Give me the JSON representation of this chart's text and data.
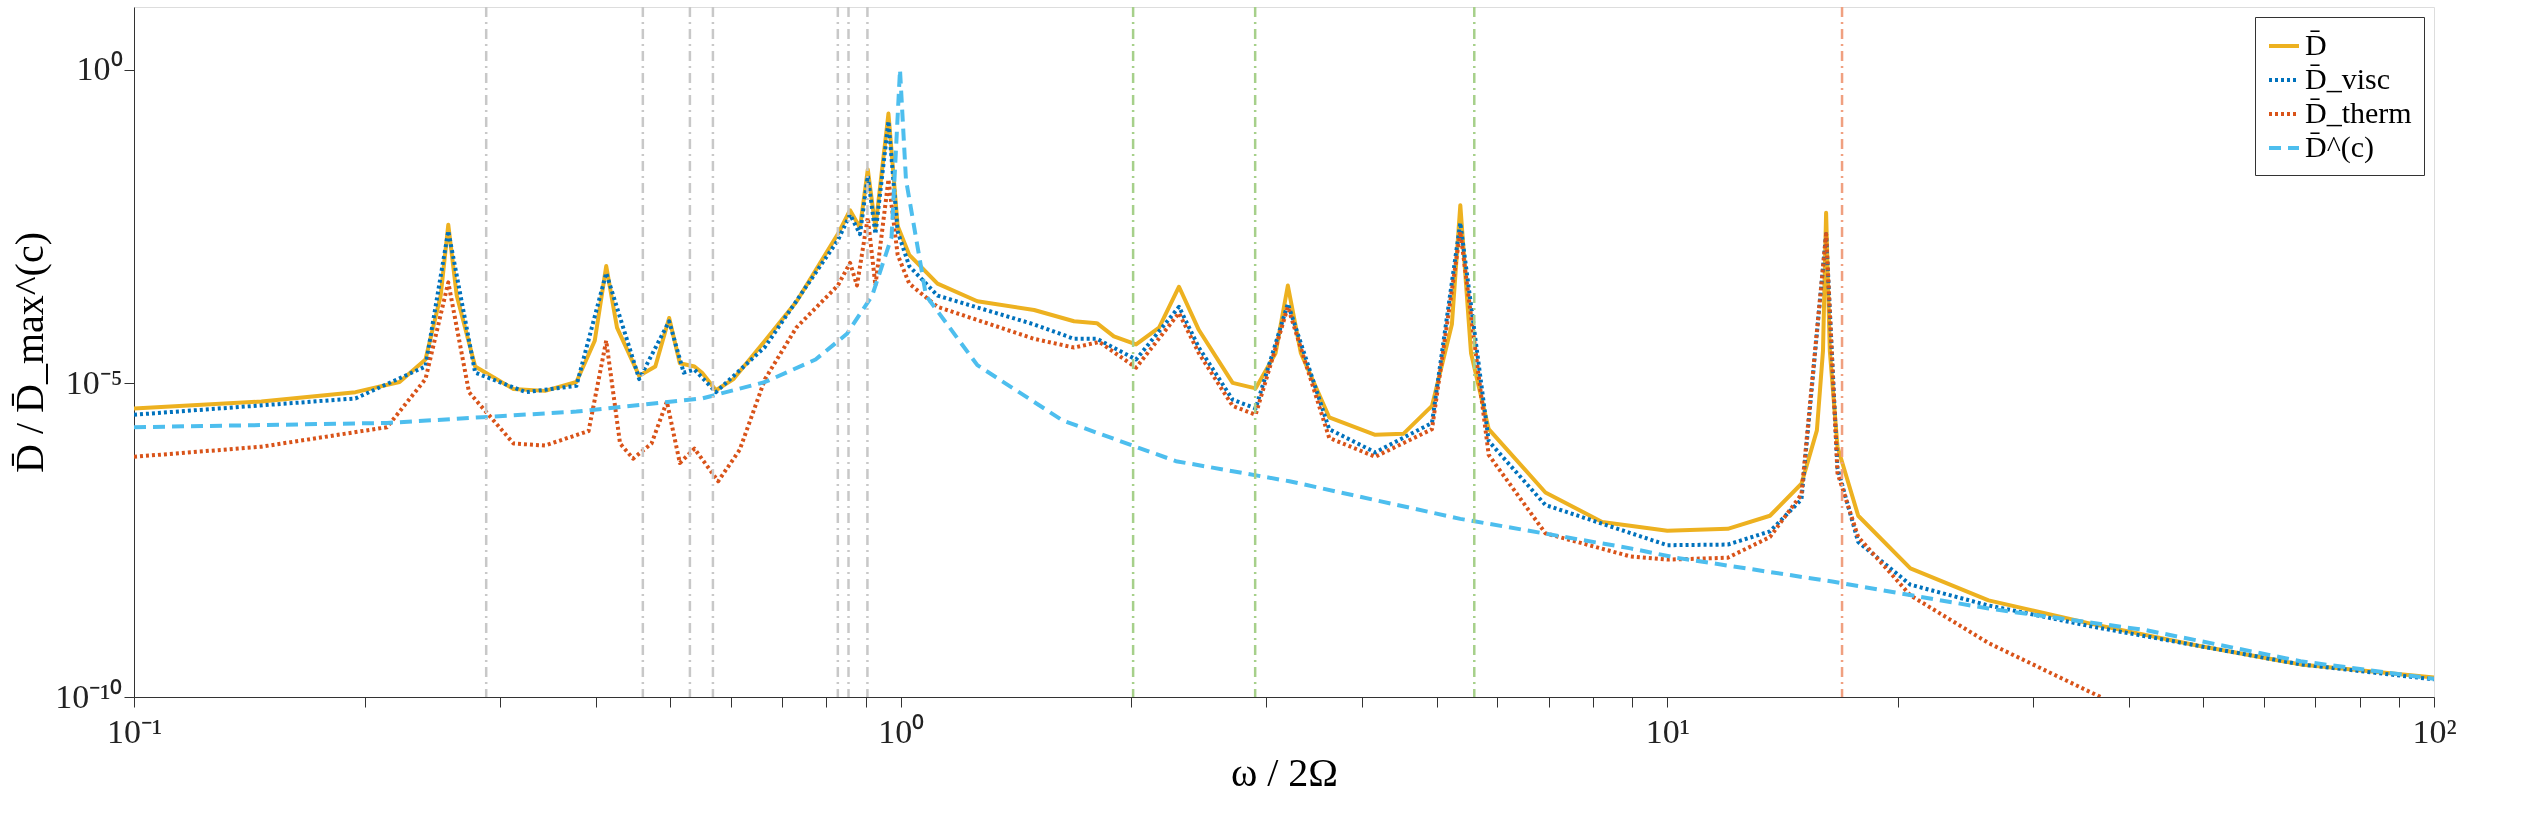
{
  "chart_data": {
    "type": "line",
    "xlabel": "ω / 2Ω",
    "ylabel": "D̄ / D̄_max^(c)",
    "log": "xy",
    "grid": false,
    "legend": "top right",
    "marker": "none",
    "xlim": [
      0.1,
      100
    ],
    "ylim": [
      1e-10,
      10
    ],
    "xticks": [
      {
        "value": 0.1,
        "label": "10⁻¹"
      },
      {
        "value": 0.2,
        "label": null
      },
      {
        "value": 0.3,
        "label": null
      },
      {
        "value": 0.4,
        "label": null
      },
      {
        "value": 0.5,
        "label": null
      },
      {
        "value": 0.6,
        "label": null
      },
      {
        "value": 0.7,
        "label": null
      },
      {
        "value": 0.8,
        "label": null
      },
      {
        "value": 0.9,
        "label": null
      },
      {
        "value": 1,
        "label": "10⁰"
      },
      {
        "value": 2,
        "label": null
      },
      {
        "value": 3,
        "label": null
      },
      {
        "value": 4,
        "label": null
      },
      {
        "value": 5,
        "label": null
      },
      {
        "value": 6,
        "label": null
      },
      {
        "value": 7,
        "label": null
      },
      {
        "value": 8,
        "label": null
      },
      {
        "value": 9,
        "label": null
      },
      {
        "value": 10,
        "label": "10¹"
      },
      {
        "value": 20,
        "label": null
      },
      {
        "value": 30,
        "label": null
      },
      {
        "value": 40,
        "label": null
      },
      {
        "value": 50,
        "label": null
      },
      {
        "value": 60,
        "label": null
      },
      {
        "value": 70,
        "label": null
      },
      {
        "value": 80,
        "label": null
      },
      {
        "value": 90,
        "label": null
      },
      {
        "value": 100,
        "label": "10²"
      }
    ],
    "yticks": [
      {
        "value": 1e-10,
        "label": "10⁻¹⁰"
      },
      {
        "value": 1e-05,
        "label": "10⁻⁵"
      },
      {
        "value": 1,
        "label": "10⁰"
      }
    ],
    "series": [
      {
        "name": "D̄",
        "color": "#edb120",
        "line_style": "solid",
        "x": [
          0.1,
          0.1466,
          0.1945,
          0.222,
          0.24,
          0.2512,
          0.257,
          0.2636,
          0.2786,
          0.3126,
          0.3436,
          0.3776,
          0.399,
          0.413,
          0.4266,
          0.456,
          0.4786,
          0.4989,
          0.5152,
          0.5383,
          0.5508,
          0.5741,
          0.6053,
          0.6653,
          0.7311,
          0.828,
          0.859,
          0.885,
          0.906,
          0.927,
          0.964,
          0.991,
          1.026,
          1.117,
          1.259,
          1.493,
          1.683,
          1.803,
          1.897,
          2.028,
          2.173,
          2.307,
          2.449,
          2.71,
          2.904,
          3.083,
          3.199,
          3.327,
          3.622,
          4.159,
          4.529,
          4.932,
          5.236,
          5.37,
          5.546,
          5.848,
          6.934,
          8.222,
          10,
          11.99,
          13.61,
          14.96,
          15.67,
          15.96,
          16.11,
          16.29,
          16.67,
          17.74,
          20.75,
          26.24,
          35.89,
          49.09,
          66.99,
          100
        ],
        "values": [
          3.98e-06,
          5.13e-06,
          7.24e-06,
          1.05e-05,
          2.4e-05,
          0.000251,
          0.00339,
          0.000251,
          1.86e-05,
          8.13e-06,
          7.59e-06,
          1.05e-05,
          4.79e-05,
          0.000741,
          7.76e-05,
          1.32e-05,
          1.86e-05,
          0.00011,
          2.09e-05,
          1.86e-05,
          1.48e-05,
          7.76e-06,
          1.17e-05,
          4.79e-05,
          0.0002,
          0.0024,
          0.00575,
          0.00302,
          0.0257,
          0.00302,
          0.2,
          0.00324,
          0.00112,
          0.000389,
          0.000204,
          0.000148,
          9.77e-05,
          9.12e-05,
          5.62e-05,
          4.17e-05,
          7.76e-05,
          0.000347,
          7.08e-05,
          1.02e-05,
          8.32e-06,
          3.02e-05,
          0.000363,
          3.02e-05,
          2.88e-06,
          1.51e-06,
          1.58e-06,
          4.37e-06,
          8.71e-05,
          0.00692,
          3.02e-05,
          1.86e-06,
          1.82e-07,
          6.17e-08,
          4.47e-08,
          4.79e-08,
          7.76e-08,
          2.51e-07,
          1.78e-06,
          3.31e-05,
          0.00525,
          3.31e-05,
          9.77e-07,
          7.76e-08,
          1.12e-08,
          3.47e-09,
          1.45e-09,
          6.61e-10,
          3.31e-10,
          2.04e-10
        ]
      },
      {
        "name": "D̄_visc",
        "color": "#0072bd",
        "line_style": "dotted",
        "x": [
          0.1,
          0.1945,
          0.24,
          0.257,
          0.2786,
          0.3243,
          0.3776,
          0.413,
          0.456,
          0.4989,
          0.5212,
          0.5383,
          0.5741,
          0.6653,
          0.828,
          0.859,
          0.885,
          0.906,
          0.927,
          0.964,
          0.991,
          1.026,
          1.117,
          1.493,
          1.683,
          1.803,
          2.028,
          2.307,
          2.449,
          2.71,
          2.904,
          3.199,
          3.622,
          4.159,
          4.932,
          5.37,
          5.848,
          6.934,
          10,
          11.99,
          13.61,
          14.96,
          16.11,
          16.67,
          17.74,
          20.75,
          26.24,
          35.89,
          66.99,
          100
        ],
        "values": [
          3.16e-06,
          5.75e-06,
          1.86e-05,
          0.00269,
          1.48e-05,
          7.24e-06,
          9.12e-06,
          0.000575,
          1.17e-05,
          9.77e-05,
          1.48e-05,
          1.66e-05,
          7.24e-06,
          3.8e-05,
          0.00191,
          0.0049,
          0.0024,
          0.0204,
          0.0024,
          0.151,
          0.00263,
          0.000741,
          0.000251,
          8.71e-05,
          5.13e-05,
          5.13e-05,
          2.4e-05,
          0.000166,
          3.72e-05,
          5.5e-06,
          3.98e-06,
          0.000186,
          1.86e-06,
          7.94e-07,
          2.34e-06,
          0.00363,
          1.2e-06,
          1.15e-07,
          2.63e-08,
          2.69e-08,
          4.37e-08,
          1.41e-07,
          0.0024,
          4.47e-07,
          2.95e-08,
          6.17e-09,
          2.88e-09,
          1.32e-09,
          3.31e-10,
          1.91e-10
        ]
      },
      {
        "name": "D̄_therm",
        "color": "#d95319",
        "line_style": "dotted",
        "x": [
          0.1,
          0.1466,
          0.2138,
          0.24,
          0.257,
          0.2735,
          0.3126,
          0.3436,
          0.3917,
          0.413,
          0.4305,
          0.4477,
          0.4732,
          0.4955,
          0.5152,
          0.5383,
          0.5781,
          0.6166,
          0.6653,
          0.7311,
          0.828,
          0.859,
          0.877,
          0.906,
          0.927,
          0.964,
          0.991,
          1.026,
          1.117,
          1.493,
          1.683,
          1.816,
          2.028,
          2.307,
          2.449,
          2.71,
          2.904,
          3.199,
          3.622,
          4.159,
          4.932,
          5.37,
          5.848,
          6.934,
          8.954,
          10,
          11.99,
          13.61,
          14.96,
          16.11,
          16.67,
          17.74,
          20.75,
          26.24,
          36.73
        ],
        "values": [
          6.76e-07,
          9.77e-07,
          2e-06,
          1.17e-05,
          0.000407,
          7.24e-06,
          1.1e-06,
          1.02e-06,
          1.74e-06,
          4.79e-05,
          1.1e-06,
          6.31e-07,
          1.1e-06,
          5.13e-06,
          5.37e-07,
          9.12e-07,
          2.75e-07,
          8.71e-07,
          1.17e-05,
          7.76e-05,
          0.000363,
          0.000832,
          0.000363,
          0.00437,
          0.000363,
          0.0178,
          0.00112,
          0.000389,
          0.000166,
          5.13e-05,
          3.72e-05,
          4.57e-05,
          1.78e-05,
          0.000132,
          3.02e-05,
          4.37e-06,
          3.16e-06,
          0.000166,
          1.35e-06,
          6.76e-07,
          1.86e-06,
          0.00263,
          7.24e-07,
          4.07e-08,
          1.74e-08,
          1.55e-08,
          1.66e-08,
          3.55e-08,
          1.7e-07,
          0.0024,
          3.72e-07,
          3.55e-08,
          4.17e-09,
          7.24e-10,
          1e-10
        ]
      },
      {
        "name": "D̄^(c)",
        "color": "#4dbeee",
        "line_style": "dashed",
        "x": [
          0.1,
          0.2138,
          0.3776,
          0.5508,
          0.6653,
          0.7745,
          0.851,
          0.918,
          0.973,
          0.998,
          1.016,
          1.079,
          1.259,
          1.626,
          2.286,
          3.214,
          5.37,
          8.954,
          10.28,
          16.41,
          26.24,
          41.98,
          66.99,
          100
        ],
        "values": [
          2e-06,
          2.34e-06,
          3.55e-06,
          5.75e-06,
          1.05e-05,
          2.4e-05,
          6.17e-05,
          0.000251,
          0.00214,
          1,
          0.0178,
          0.000251,
          1.95e-05,
          2.57e-06,
          5.75e-07,
          2.75e-07,
          6.92e-08,
          2.34e-08,
          1.66e-08,
          6.92e-09,
          2.57e-09,
          1.17e-09,
          3.72e-10,
          1.95e-10
        ]
      }
    ],
    "ref_lines": [
      {
        "axis": "x",
        "value": 0.288,
        "color": "#c8c8c8"
      },
      {
        "axis": "x",
        "value": 0.461,
        "color": "#c8c8c8"
      },
      {
        "axis": "x",
        "value": 0.531,
        "color": "#c8c8c8"
      },
      {
        "axis": "x",
        "value": 0.569,
        "color": "#c8c8c8"
      },
      {
        "axis": "x",
        "value": 0.828,
        "color": "#c8c8c8"
      },
      {
        "axis": "x",
        "value": 0.855,
        "color": "#c8c8c8"
      },
      {
        "axis": "x",
        "value": 0.905,
        "color": "#c8c8c8"
      },
      {
        "axis": "x",
        "value": 2.01,
        "color": "#a6d08a"
      },
      {
        "axis": "x",
        "value": 2.9,
        "color": "#a6d08a"
      },
      {
        "axis": "x",
        "value": 5.6,
        "color": "#a6d08a"
      },
      {
        "axis": "x",
        "value": 16.9,
        "color": "#f0a080"
      }
    ]
  }
}
